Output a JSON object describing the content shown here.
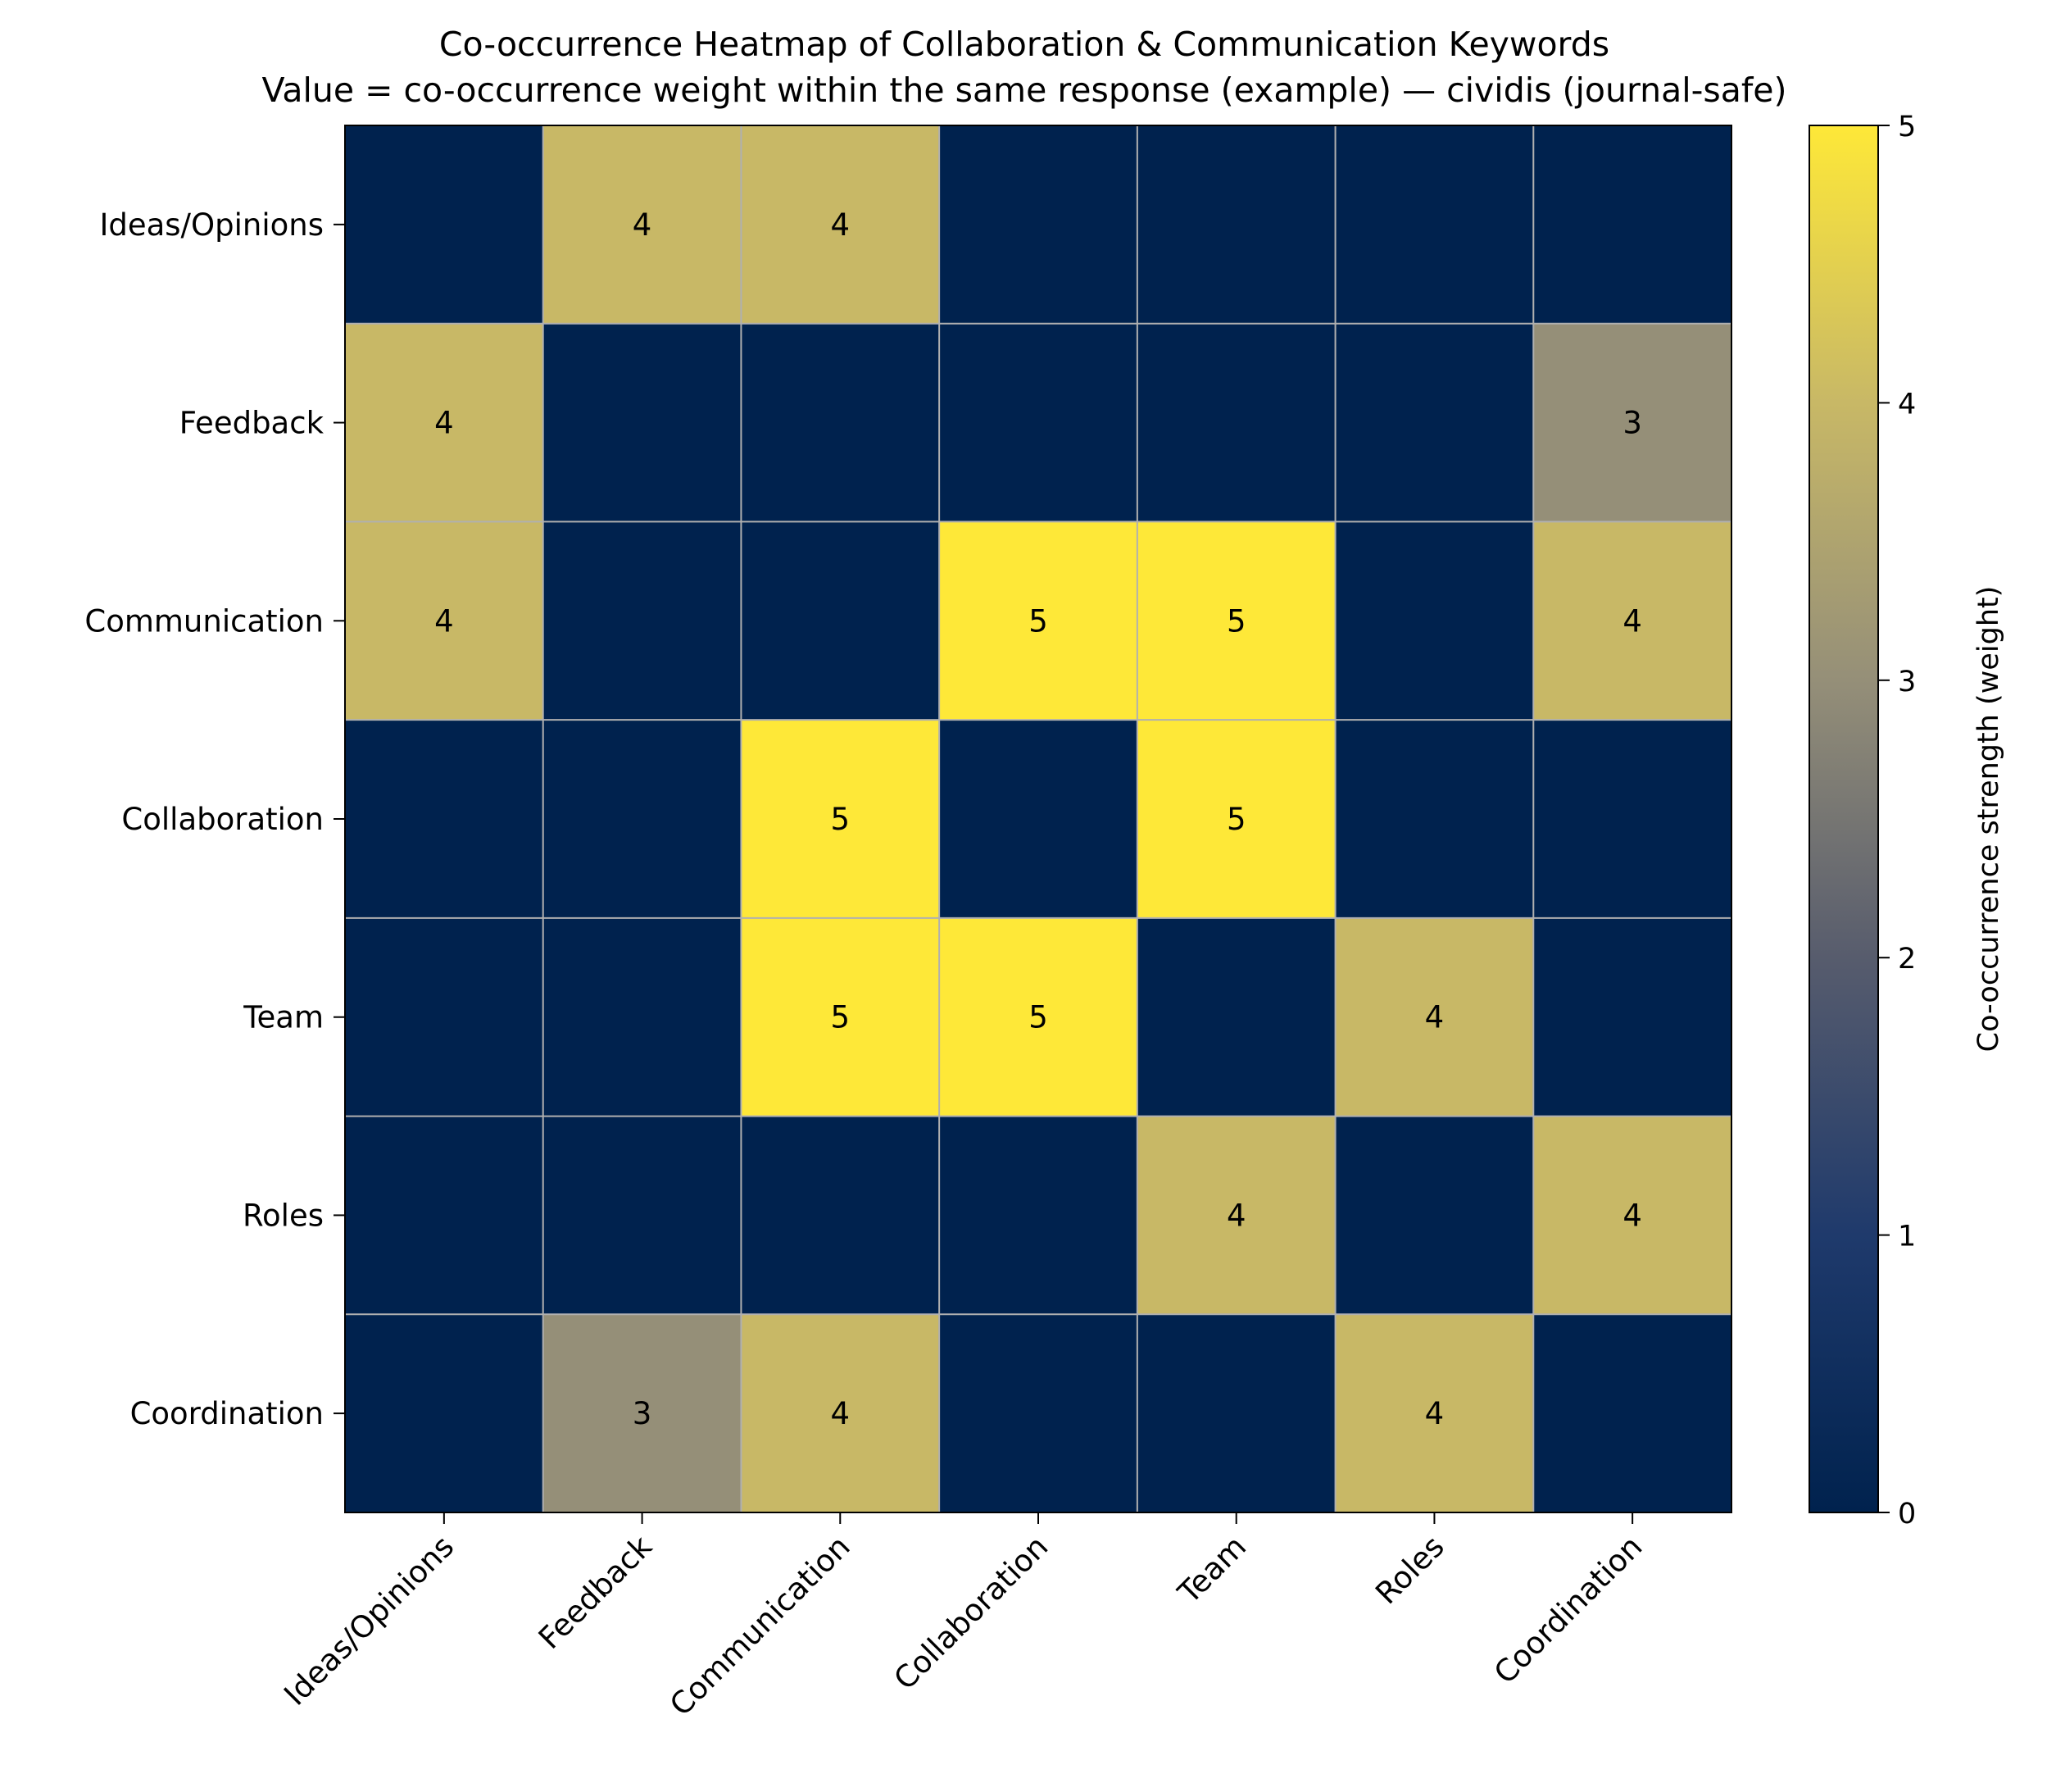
{
  "chart_data": {
    "type": "heatmap",
    "title": "Co-occurrence Heatmap of Collaboration & Communication Keywords",
    "subtitle": "Value = co-occurrence weight within the same response (example) — cividis (journal-safe)",
    "row_labels": [
      "Ideas/Opinions",
      "Feedback",
      "Communication",
      "Collaboration",
      "Team",
      "Roles",
      "Coordination"
    ],
    "col_labels": [
      "Ideas/Opinions",
      "Feedback",
      "Communication",
      "Collaboration",
      "Team",
      "Roles",
      "Coordination"
    ],
    "values": [
      [
        0,
        4,
        4,
        0,
        0,
        0,
        0
      ],
      [
        4,
        0,
        0,
        0,
        0,
        0,
        3
      ],
      [
        4,
        0,
        0,
        5,
        5,
        0,
        4
      ],
      [
        0,
        0,
        5,
        0,
        5,
        0,
        0
      ],
      [
        0,
        0,
        5,
        5,
        0,
        4,
        0
      ],
      [
        0,
        0,
        0,
        0,
        4,
        0,
        4
      ],
      [
        0,
        3,
        4,
        0,
        0,
        4,
        0
      ]
    ],
    "annotate_nonzero_only": true,
    "colormap": "cividis",
    "vmin": 0,
    "vmax": 5,
    "colorbar": {
      "label": "Co-occurrence strength (weight)",
      "ticks": [
        0,
        1,
        2,
        3,
        4,
        5
      ]
    },
    "colors": {
      "c0": "#00224e",
      "c1": "#1f3a6c",
      "c2": "#575c6d",
      "c3": "#958f78",
      "c4": "#c8b866",
      "c5": "#fee838",
      "grid": "#b0b0b0"
    }
  }
}
